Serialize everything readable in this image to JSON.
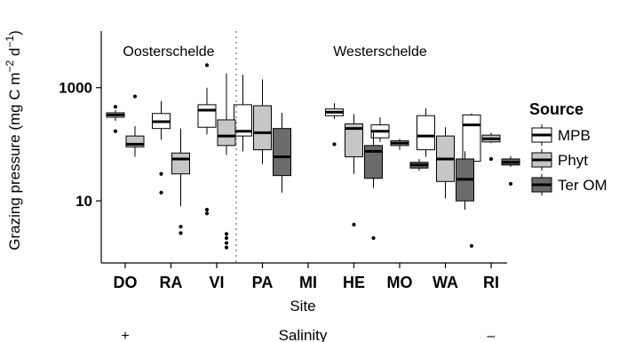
{
  "chart_data": {
    "type": "box",
    "ylabel_main": "Grazing pressure (mg C m",
    "ylabel_sup1": "−2",
    "ylabel_mid": " d",
    "ylabel_sup2": "−1",
    "ylabel_end": ")",
    "xlabel": "Site",
    "y_scale": "log",
    "ylim": [
      0.8,
      10000
    ],
    "yticks": [
      10,
      1000
    ],
    "ytick_labels": [
      "10",
      "1000"
    ],
    "categories": [
      "DO",
      "RA",
      "VI",
      "PA",
      "MI",
      "HE",
      "MO",
      "WA",
      "RI"
    ],
    "regions": [
      {
        "label": "Oosterschelde",
        "sites": [
          "DO",
          "RA",
          "VI"
        ]
      },
      {
        "label": "Westerschelde",
        "sites": [
          "PA",
          "MI",
          "HE",
          "MO",
          "WA",
          "RI"
        ]
      }
    ],
    "salinity": {
      "label": "Salinity",
      "high": "+",
      "low": "–"
    },
    "legend": {
      "title": "Source",
      "position": "right"
    },
    "grid": false,
    "series": [
      {
        "name": "MPB",
        "color": "#ffffff",
        "boxes": [
          {
            "site": "DO",
            "min": 260,
            "q1": 300,
            "median": 330,
            "q3": 360,
            "max": 400,
            "outliers": [
              170,
              460
            ]
          },
          {
            "site": "RA",
            "min": 120,
            "q1": 190,
            "median": 250,
            "q3": 350,
            "max": 580,
            "outliers": [
              30,
              14
            ]
          },
          {
            "site": "VI",
            "min": 150,
            "q1": 200,
            "median": 400,
            "q3": 500,
            "max": 1000,
            "outliers": [
              2500,
              7,
              6
            ]
          },
          {
            "site": "PA",
            "min": 75,
            "q1": 140,
            "median": 170,
            "q3": 500,
            "max": 1700,
            "outliers": []
          },
          {
            "site": "HE",
            "min": 280,
            "q1": 320,
            "median": 370,
            "q3": 420,
            "max": 530,
            "outliers": [
              100
            ]
          },
          {
            "site": "MO",
            "min": 110,
            "q1": 130,
            "median": 170,
            "q3": 220,
            "max": 300,
            "outliers": []
          },
          {
            "site": "WA",
            "min": 60,
            "q1": 80,
            "median": 140,
            "q3": 320,
            "max": 430,
            "outliers": []
          },
          {
            "site": "RI",
            "min": 50,
            "q1": 50,
            "median": 220,
            "q3": 330,
            "max": 350,
            "outliers": [
              1.6
            ]
          }
        ]
      },
      {
        "name": "Phyt",
        "color": "#c6c6c6",
        "boxes": [
          {
            "site": "DO",
            "min": 60,
            "q1": 90,
            "median": 100,
            "q3": 140,
            "max": 210,
            "outliers": [
              700
            ]
          },
          {
            "site": "RA",
            "min": 8,
            "q1": 30,
            "median": 55,
            "q3": 70,
            "max": 190,
            "outliers": [
              3.5,
              2.7
            ]
          },
          {
            "site": "VI",
            "min": 65,
            "q1": 95,
            "median": 140,
            "q3": 270,
            "max": 1800,
            "outliers": [
              2.6,
              2.2,
              1.8,
              1.5
            ]
          },
          {
            "site": "PA",
            "min": 45,
            "q1": 80,
            "median": 160,
            "q3": 480,
            "max": 1400,
            "outliers": []
          },
          {
            "site": "HE",
            "min": 30,
            "q1": 60,
            "median": 190,
            "q3": 230,
            "max": 340,
            "outliers": [
              3.8
            ]
          },
          {
            "site": "MO",
            "min": 80,
            "q1": 95,
            "median": 105,
            "q3": 115,
            "max": 125,
            "outliers": []
          },
          {
            "site": "WA",
            "min": 11,
            "q1": 22,
            "median": 55,
            "q3": 140,
            "max": 200,
            "outliers": []
          },
          {
            "site": "RI",
            "min": 105,
            "q1": 110,
            "median": 125,
            "q3": 145,
            "max": 160,
            "outliers": [
              55
            ]
          }
        ]
      },
      {
        "name": "Ter OM",
        "color": "#6b6b6b",
        "boxes": [
          {
            "site": "PA",
            "min": 14,
            "q1": 28,
            "median": 60,
            "q3": 190,
            "max": 360,
            "outliers": []
          },
          {
            "site": "HE",
            "min": 17,
            "q1": 25,
            "median": 75,
            "q3": 95,
            "max": 160,
            "outliers": [
              2.2
            ]
          },
          {
            "site": "MO",
            "min": 34,
            "q1": 38,
            "median": 43,
            "q3": 48,
            "max": 55,
            "outliers": []
          },
          {
            "site": "WA",
            "min": 7,
            "q1": 10,
            "median": 24,
            "q3": 55,
            "max": 75,
            "outliers": []
          },
          {
            "site": "RI",
            "min": 40,
            "q1": 43,
            "median": 48,
            "q3": 55,
            "max": 62,
            "outliers": [
              20
            ]
          }
        ]
      }
    ]
  }
}
